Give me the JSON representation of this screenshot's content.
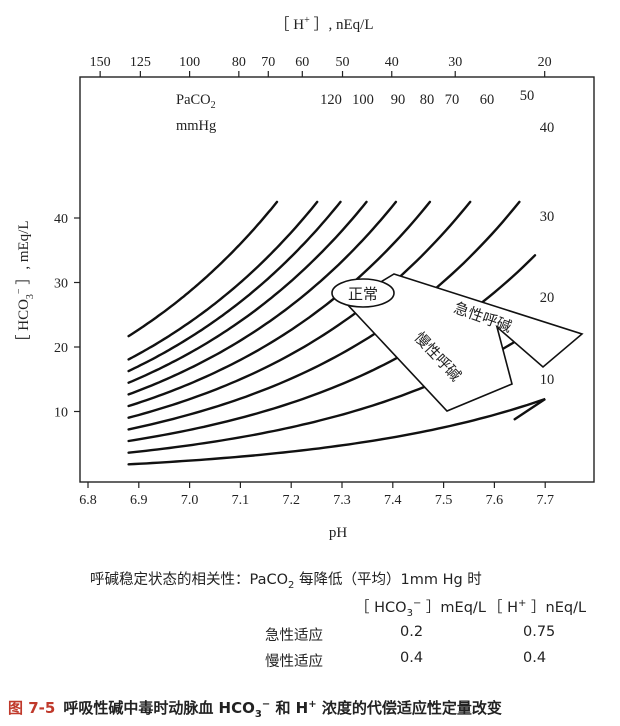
{
  "chart_data": {
    "type": "line",
    "title": "",
    "xlabel": "pH",
    "ylabel_parts": [
      "［ HCO",
      "3",
      "−",
      " ］, mEq/L"
    ],
    "top_axis_label_parts": [
      "［ H",
      "+",
      " ］, nEq/L"
    ],
    "xlim": [
      6.8,
      7.7
    ],
    "ylim": [
      0,
      50
    ],
    "x_ticks": [
      "6.8",
      "6.9",
      "7.0",
      "7.1",
      "7.2",
      "7.3",
      "7.4",
      "7.5",
      "7.6",
      "7.7"
    ],
    "y_ticks": [
      "10",
      "20",
      "30",
      "40"
    ],
    "top_ticks": [
      "150",
      "125",
      "100",
      "80",
      "70",
      "60",
      "50",
      "40",
      "30",
      "20"
    ],
    "isopleth_title_parts": [
      "PaCO",
      "2"
    ],
    "isopleth_units": "mmHg",
    "series": [
      {
        "name": "120",
        "paco2": 120
      },
      {
        "name": "100",
        "paco2": 100
      },
      {
        "name": "90",
        "paco2": 90
      },
      {
        "name": "80",
        "paco2": 80
      },
      {
        "name": "70",
        "paco2": 70
      },
      {
        "name": "60",
        "paco2": 60
      },
      {
        "name": "50",
        "paco2": 50
      },
      {
        "name": "40",
        "paco2": 40
      },
      {
        "name": "30",
        "paco2": 30
      },
      {
        "name": "20",
        "paco2": 20
      },
      {
        "name": "10",
        "paco2": 10
      }
    ],
    "annotations": {
      "normal": "正常",
      "acute": "急性呼碱",
      "chronic": "慢性呼碱"
    }
  },
  "notes": {
    "heading_prefix": "呼碱稳定状态的相关性：PaCO",
    "heading_sub": "2",
    "heading_suffix": " 每降低（平均）1mm Hg 时",
    "col1_parts": [
      "［ HCO",
      "3",
      "−",
      " ］mEq/L"
    ],
    "col2_parts": [
      "［ H",
      "+",
      " ］nEq/L"
    ],
    "rows": [
      {
        "label": "急性适应",
        "hco3": "0.2",
        "h": "0.75"
      },
      {
        "label": "慢性适应",
        "hco3": "0.4",
        "h": "0.4"
      }
    ]
  },
  "caption": {
    "fig": "图 7-5",
    "text_parts": [
      "呼吸性碱中毒时动脉血 HCO",
      "3",
      "−",
      " 和 H",
      "+",
      " 浓度的代偿适应性定量改变"
    ]
  }
}
